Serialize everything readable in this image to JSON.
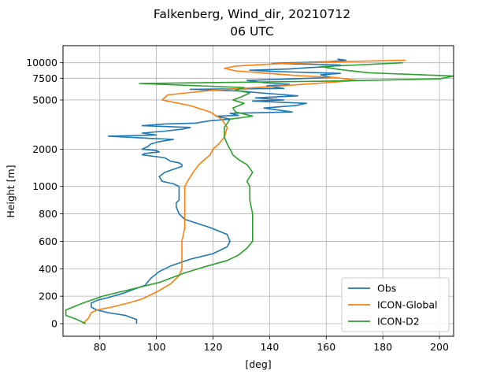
{
  "chart_data": {
    "type": "line",
    "title": "Falkenberg, Wind_dir, 20210712",
    "subtitle": "06 UTC",
    "xlabel": "[deg]",
    "ylabel": "Height [m]",
    "xlim": [
      67,
      205
    ],
    "x_ticks": [
      80,
      100,
      120,
      140,
      160,
      180,
      200
    ],
    "y_ticks": [
      0,
      200,
      400,
      600,
      800,
      1000,
      2000,
      5000,
      7500,
      10000
    ],
    "y_tick_labels": [
      "0",
      "200",
      "400",
      "600",
      "800",
      "1000",
      "2000",
      "5000",
      "7500",
      "10000"
    ],
    "y_scale": "piecewise: linear 0-1000 m, logarithmic above",
    "grid": true,
    "legend_position": "lower-right",
    "series": [
      {
        "name": "Obs",
        "color": "#1f77b4",
        "points": [
          [
            93,
            0
          ],
          [
            93,
            30
          ],
          [
            89,
            60
          ],
          [
            83,
            80
          ],
          [
            79,
            100
          ],
          [
            77,
            120
          ],
          [
            77,
            150
          ],
          [
            79,
            170
          ],
          [
            83,
            190
          ],
          [
            88,
            220
          ],
          [
            92,
            250
          ],
          [
            96,
            280
          ],
          [
            98,
            330
          ],
          [
            101,
            380
          ],
          [
            105,
            420
          ],
          [
            112,
            470
          ],
          [
            120,
            510
          ],
          [
            125,
            560
          ],
          [
            126,
            600
          ],
          [
            125,
            650
          ],
          [
            119,
            700
          ],
          [
            113,
            740
          ],
          [
            110,
            760
          ],
          [
            108,
            800
          ],
          [
            107,
            850
          ],
          [
            107,
            880
          ],
          [
            108,
            900
          ],
          [
            108,
            950
          ],
          [
            108,
            1000
          ],
          [
            106,
            1050
          ],
          [
            102,
            1100
          ],
          [
            101,
            1200
          ],
          [
            103,
            1300
          ],
          [
            105,
            1350
          ],
          [
            107,
            1400
          ],
          [
            109,
            1450
          ],
          [
            109,
            1500
          ],
          [
            108,
            1550
          ],
          [
            105,
            1600
          ],
          [
            104,
            1650
          ],
          [
            103,
            1700
          ],
          [
            99,
            1750
          ],
          [
            95,
            1800
          ],
          [
            96,
            1850
          ],
          [
            101,
            1900
          ],
          [
            100,
            1950
          ],
          [
            95,
            2000
          ],
          [
            97,
            2100
          ],
          [
            98,
            2200
          ],
          [
            101,
            2300
          ],
          [
            106,
            2400
          ],
          [
            97,
            2450
          ],
          [
            90,
            2500
          ],
          [
            83,
            2550
          ],
          [
            100,
            2600
          ],
          [
            95,
            2700
          ],
          [
            103,
            2800
          ],
          [
            109,
            2900
          ],
          [
            112,
            3000
          ],
          [
            95,
            3100
          ],
          [
            103,
            3200
          ],
          [
            114,
            3250
          ],
          [
            119,
            3400
          ],
          [
            126,
            3500
          ],
          [
            121,
            3700
          ],
          [
            129,
            3750
          ],
          [
            126,
            3900
          ],
          [
            148,
            4000
          ],
          [
            138,
            4300
          ],
          [
            149,
            4500
          ],
          [
            153,
            4700
          ],
          [
            134,
            4900
          ],
          [
            145,
            5000
          ],
          [
            135,
            5200
          ],
          [
            150,
            5400
          ],
          [
            137,
            5700
          ],
          [
            130,
            5900
          ],
          [
            112,
            6100
          ],
          [
            145,
            6200
          ],
          [
            139,
            6500
          ],
          [
            147,
            6700
          ],
          [
            138,
            6900
          ],
          [
            132,
            7200
          ],
          [
            140,
            7300
          ],
          [
            162,
            7600
          ],
          [
            158,
            8000
          ],
          [
            165,
            8200
          ],
          [
            142,
            8500
          ],
          [
            133,
            8700
          ],
          [
            147,
            8900
          ],
          [
            153,
            9100
          ],
          [
            161,
            9300
          ],
          [
            165,
            9600
          ],
          [
            141,
            9900
          ],
          [
            161,
            10200
          ],
          [
            167,
            10500
          ],
          [
            164,
            10700
          ]
        ]
      },
      {
        "name": "ICON-Global",
        "color": "#ff7f0e",
        "points": [
          [
            74,
            0
          ],
          [
            76,
            40
          ],
          [
            77,
            80
          ],
          [
            79,
            100
          ],
          [
            84,
            120
          ],
          [
            90,
            150
          ],
          [
            95,
            180
          ],
          [
            100,
            230
          ],
          [
            105,
            290
          ],
          [
            108,
            350
          ],
          [
            109,
            400
          ],
          [
            109,
            500
          ],
          [
            109,
            600
          ],
          [
            110,
            700
          ],
          [
            110,
            800
          ],
          [
            110,
            900
          ],
          [
            110,
            1000
          ],
          [
            111,
            1100
          ],
          [
            113,
            1300
          ],
          [
            115,
            1500
          ],
          [
            117,
            1650
          ],
          [
            119,
            1800
          ],
          [
            120,
            2000
          ],
          [
            122,
            2200
          ],
          [
            124,
            2500
          ],
          [
            125,
            3000
          ],
          [
            123,
            3500
          ],
          [
            119,
            4000
          ],
          [
            112,
            4500
          ],
          [
            102,
            5000
          ],
          [
            104,
            5500
          ],
          [
            120,
            6000
          ],
          [
            140,
            6400
          ],
          [
            160,
            6900
          ],
          [
            171,
            7200
          ],
          [
            163,
            7600
          ],
          [
            149,
            7900
          ],
          [
            137,
            8300
          ],
          [
            128,
            8600
          ],
          [
            124,
            9000
          ],
          [
            128,
            9400
          ],
          [
            142,
            9800
          ],
          [
            165,
            10200
          ],
          [
            188,
            10500
          ]
        ]
      },
      {
        "name": "ICON-D2",
        "color": "#2ca02c",
        "points": [
          [
            75,
            0
          ],
          [
            72,
            30
          ],
          [
            68,
            60
          ],
          [
            68,
            100
          ],
          [
            74,
            150
          ],
          [
            81,
            200
          ],
          [
            91,
            250
          ],
          [
            101,
            300
          ],
          [
            110,
            370
          ],
          [
            118,
            420
          ],
          [
            125,
            460
          ],
          [
            129,
            500
          ],
          [
            132,
            550
          ],
          [
            134,
            600
          ],
          [
            134,
            700
          ],
          [
            134,
            800
          ],
          [
            133,
            900
          ],
          [
            133,
            1000
          ],
          [
            132,
            1100
          ],
          [
            134,
            1300
          ],
          [
            132,
            1500
          ],
          [
            129,
            1650
          ],
          [
            127,
            1800
          ],
          [
            126,
            2000
          ],
          [
            125,
            2200
          ],
          [
            124,
            2500
          ],
          [
            124,
            3000
          ],
          [
            126,
            3500
          ],
          [
            134,
            3700
          ],
          [
            128,
            4000
          ],
          [
            127,
            4300
          ],
          [
            131,
            4700
          ],
          [
            127,
            5000
          ],
          [
            130,
            5300
          ],
          [
            133,
            5700
          ],
          [
            128,
            6000
          ],
          [
            131,
            6300
          ],
          [
            94,
            6800
          ],
          [
            160,
            7100
          ],
          [
            200,
            7400
          ],
          [
            205,
            7800
          ],
          [
            175,
            8300
          ],
          [
            165,
            8800
          ],
          [
            158,
            9300
          ],
          [
            171,
            9600
          ],
          [
            187,
            10000
          ]
        ]
      }
    ]
  }
}
